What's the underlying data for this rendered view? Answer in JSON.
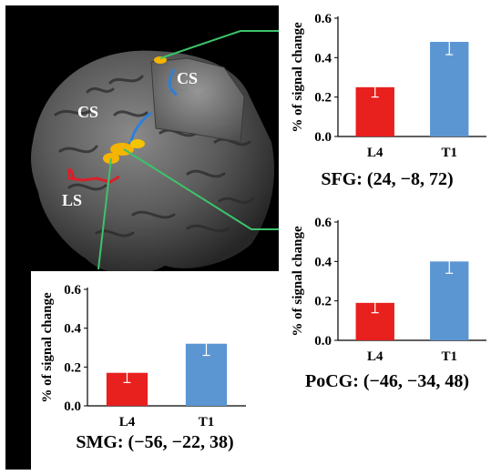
{
  "brain_labels": {
    "cs_upper": "CS",
    "cs_lower": "CS",
    "ls": "LS"
  },
  "chart_data": [
    {
      "type": "bar",
      "categories": [
        "L4",
        "T1"
      ],
      "values": [
        0.25,
        0.48
      ],
      "errors": [
        0.05,
        0.065
      ],
      "ylabel": "% of signal change",
      "ylim": [
        0,
        0.6
      ],
      "yticks": [
        "0.0",
        "0.2",
        "0.4",
        "0.6"
      ],
      "title": "SFG: (24, −8, 72)",
      "grid": false
    },
    {
      "type": "bar",
      "categories": [
        "L4",
        "T1"
      ],
      "values": [
        0.19,
        0.4
      ],
      "errors": [
        0.05,
        0.06
      ],
      "ylabel": "% of signal change",
      "ylim": [
        0,
        0.6
      ],
      "yticks": [
        "0.0",
        "0.2",
        "0.4",
        "0.6"
      ],
      "title": "PoCG: (−46, −34, 48)",
      "grid": false
    },
    {
      "type": "bar",
      "categories": [
        "L4",
        "T1"
      ],
      "values": [
        0.17,
        0.32
      ],
      "errors": [
        0.05,
        0.06
      ],
      "ylabel": "% of signal change",
      "ylim": [
        0,
        0.6
      ],
      "yticks": [
        "0.0",
        "0.2",
        "0.4",
        "0.6"
      ],
      "title": "SMG: (−56, −22, 38)",
      "grid": false
    }
  ],
  "colors": {
    "bar_L4": "#e8201e",
    "bar_T1": "#5b96d3",
    "connector": "#3cc36a",
    "activation": "#f5b400",
    "sulcus_blue": "#2f7fd9",
    "sulcus_red": "#d8202a"
  }
}
